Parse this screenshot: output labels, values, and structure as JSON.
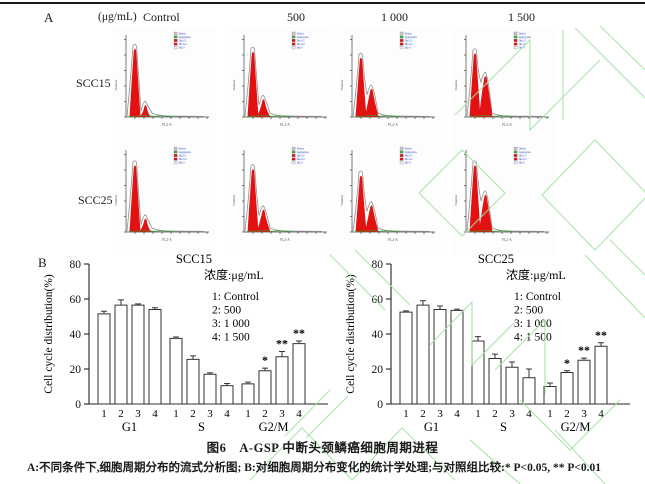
{
  "page": {
    "background": "#ffffff",
    "watermark_color": "#a5e2a5",
    "accent_red": "#e31212"
  },
  "panel_a": {
    "label": "A",
    "unit_label": "(μg/mL)",
    "column_headers": [
      "Control",
      "500",
      "1 000",
      "1 500"
    ],
    "row_labels": [
      "SCC15",
      "SCC25"
    ],
    "hist_xlabel": "FL2-A",
    "hist_ylabel": "Number",
    "legend_items": [
      {
        "label": "Debris",
        "color": "#c9c9c9"
      },
      {
        "label": "Aggregates",
        "color": "#3faa3f"
      },
      {
        "label": "Dip G1",
        "color": "#e31212"
      },
      {
        "label": "Dip G2",
        "color": "#e31212"
      },
      {
        "label": "Dip S",
        "color": "#e8eef8"
      }
    ],
    "histograms": [
      {
        "row": "SCC15",
        "column": "Control",
        "g1_peak": 0.92,
        "g2_peak": 0.16
      },
      {
        "row": "SCC15",
        "column": "500",
        "g1_peak": 0.88,
        "g2_peak": 0.24
      },
      {
        "row": "SCC15",
        "column": "1 000",
        "g1_peak": 0.8,
        "g2_peak": 0.38
      },
      {
        "row": "SCC15",
        "column": "1 500",
        "g1_peak": 0.86,
        "g2_peak": 0.55
      },
      {
        "row": "SCC25",
        "column": "Control",
        "g1_peak": 0.9,
        "g2_peak": 0.18
      },
      {
        "row": "SCC25",
        "column": "500",
        "g1_peak": 0.85,
        "g2_peak": 0.3
      },
      {
        "row": "SCC25",
        "column": "1 000",
        "g1_peak": 0.76,
        "g2_peak": 0.36
      },
      {
        "row": "SCC25",
        "column": "1 500",
        "g1_peak": 0.9,
        "g2_peak": 0.5
      }
    ]
  },
  "panel_b": {
    "label": "B"
  },
  "chart_data": [
    {
      "type": "bar",
      "title": "SCC15",
      "legend_title": "浓度:μg/mL",
      "legend_entries": [
        "1: Control",
        "2: 500",
        "3: 1 000",
        "4: 1 500"
      ],
      "ylabel": "Cell cycle distribution(%)",
      "ylim": [
        0,
        80
      ],
      "yticks": [
        0,
        20,
        40,
        60,
        80
      ],
      "bar_labels": [
        "1",
        "2",
        "3",
        "4"
      ],
      "groups": [
        "G1",
        "S",
        "G2/M"
      ],
      "series": [
        {
          "group": "G1",
          "values": [
            51.5,
            56.5,
            56.5,
            54.0
          ],
          "errors": [
            1.5,
            3.0,
            0.7,
            1.0
          ],
          "sig": [
            "",
            "",
            "",
            ""
          ]
        },
        {
          "group": "S",
          "values": [
            37.5,
            25.5,
            17.0,
            10.5
          ],
          "errors": [
            0.8,
            2.0,
            0.8,
            1.2
          ],
          "sig": [
            "",
            "",
            "",
            ""
          ]
        },
        {
          "group": "G2/M",
          "values": [
            11.5,
            19.0,
            27.0,
            34.5
          ],
          "errors": [
            1.0,
            1.5,
            3.0,
            1.5
          ],
          "sig": [
            "",
            "*",
            "**",
            "**"
          ]
        }
      ]
    },
    {
      "type": "bar",
      "title": "SCC25",
      "legend_title": "浓度:μg/mL",
      "legend_entries": [
        "1: Control",
        "2: 500",
        "3: 1 000",
        "4: 1 500"
      ],
      "ylabel": "Cell cycle distribution(%)",
      "ylim": [
        0,
        80
      ],
      "yticks": [
        0,
        20,
        40,
        60,
        80
      ],
      "bar_labels": [
        "1",
        "2",
        "3",
        "4"
      ],
      "groups": [
        "G1",
        "S",
        "G2/M"
      ],
      "series": [
        {
          "group": "G1",
          "values": [
            52.5,
            56.5,
            54.0,
            53.5
          ],
          "errors": [
            0.7,
            2.5,
            2.0,
            0.7
          ],
          "sig": [
            "",
            "",
            "",
            ""
          ]
        },
        {
          "group": "S",
          "values": [
            36.0,
            26.0,
            21.0,
            15.0
          ],
          "errors": [
            2.5,
            2.5,
            3.0,
            5.0
          ],
          "sig": [
            "",
            "",
            "",
            ""
          ]
        },
        {
          "group": "G2/M",
          "values": [
            10.0,
            18.0,
            25.0,
            33.0
          ],
          "errors": [
            2.0,
            1.0,
            1.2,
            2.0
          ],
          "sig": [
            "",
            "*",
            "**",
            "**"
          ]
        }
      ]
    }
  ],
  "caption": {
    "title": "图6　A-GSP 中断头颈鳞癌细胞周期进程",
    "note": "A:不同条件下,细胞周期分布的流式分析图; B:对细胞周期分布变化的统计学处理;与对照组比较:* P<0.05, ** P<0.01"
  }
}
